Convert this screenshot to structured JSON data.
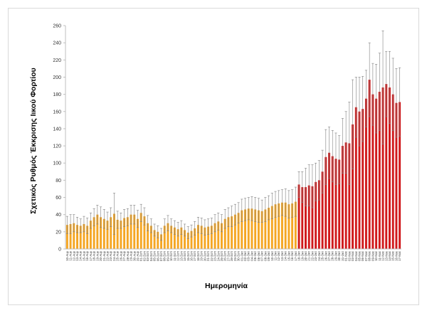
{
  "chart_data": {
    "type": "bar",
    "title": "",
    "xlabel": "Ημερομηνία",
    "ylabel": "Σχετικός Ρυθμός Έκκρισης Ιικού Φορτίου",
    "ylim": [
      0,
      260
    ],
    "yticks": [
      0,
      20,
      40,
      60,
      80,
      100,
      120,
      140,
      160,
      180,
      200,
      220,
      240,
      260
    ],
    "grid": false,
    "legend": "none",
    "colors": {
      "before": "#f5a623",
      "after": "#d0191b",
      "error_bar": "#7f7f7f",
      "axis": "#bfbfbf"
    },
    "categories": [
      "10-Αυγ",
      "11-Αυγ",
      "12-Αυγ",
      "13-Αυγ",
      "14-Αυγ",
      "15-Αυγ",
      "16-Αυγ",
      "17-Αυγ",
      "18-Αυγ",
      "19-Αυγ",
      "20-Αυγ",
      "21-Αυγ",
      "22-Αυγ",
      "23-Αυγ",
      "24-Αυγ",
      "25-Αυγ",
      "26-Αυγ",
      "27-Αυγ",
      "28-Αυγ",
      "29-Αυγ",
      "30-Αυγ",
      "31-Αυγ",
      "01-Σεπ",
      "02-Σεπ",
      "03-Σεπ",
      "04-Σεπ",
      "05-Σεπ",
      "06-Σεπ",
      "07-Σεπ",
      "08-Σεπ",
      "09-Σεπ",
      "10-Σεπ",
      "11-Σεπ",
      "12-Σεπ",
      "13-Σεπ",
      "14-Σεπ",
      "15-Σεπ",
      "16-Σεπ",
      "17-Σεπ",
      "18-Σεπ",
      "19-Σεπ",
      "20-Σεπ",
      "21-Σεπ",
      "22-Σεπ",
      "23-Σεπ",
      "24-Σεπ",
      "25-Σεπ",
      "26-Σεπ",
      "27-Σεπ",
      "28-Σεπ",
      "29-Σεπ",
      "30-Σεπ",
      "01-Οκτ",
      "02-Οκτ",
      "03-Οκτ",
      "04-Οκτ",
      "05-Οκτ",
      "06-Οκτ",
      "07-Οκτ",
      "08-Οκτ",
      "09-Οκτ",
      "10-Οκτ",
      "11-Οκτ",
      "12-Οκτ",
      "13-Οκτ",
      "14-Οκτ",
      "15-Οκτ",
      "16-Οκτ",
      "17-Οκτ",
      "18-Οκτ",
      "19-Οκτ",
      "20-Οκτ",
      "21-Οκτ",
      "22-Οκτ",
      "23-Οκτ",
      "24-Οκτ",
      "25-Οκτ",
      "26-Οκτ",
      "27-Οκτ",
      "28-Οκτ",
      "29-Οκτ",
      "30-Οκτ",
      "31-Οκτ",
      "01-Νοε",
      "02-Νοε",
      "03-Νοε",
      "04-Νοε",
      "05-Νοε",
      "06-Νοε",
      "07-Νοε",
      "08-Νοε",
      "09-Νοε",
      "10-Νοε",
      "11-Νοε",
      "12-Νοε",
      "13-Νοε",
      "14-Νοε",
      "15-Νοε",
      "16-Νοε",
      "17-Νοε"
    ],
    "series": [
      {
        "values": [
          28,
          29,
          30,
          28,
          27,
          29,
          27,
          33,
          37,
          40,
          37,
          35,
          33,
          37,
          41,
          34,
          33,
          36,
          37,
          40,
          40,
          35,
          42,
          38,
          30,
          27,
          22,
          20,
          17,
          27,
          30,
          27,
          25,
          23,
          25,
          22,
          19,
          21,
          24,
          28,
          27,
          25,
          26,
          27,
          30,
          32,
          30,
          35,
          37,
          38,
          40,
          42,
          45,
          46,
          47,
          47,
          46,
          45,
          44,
          46,
          48,
          50,
          52,
          53,
          54,
          54,
          52,
          53,
          55,
          75,
          72,
          72,
          74,
          73,
          78,
          80,
          90,
          107,
          112,
          108,
          105,
          104,
          120,
          124,
          123,
          145,
          165,
          160,
          163,
          175,
          197,
          180,
          175,
          183,
          188,
          192,
          188,
          180,
          170,
          171
        ],
        "errors": [
          10,
          11,
          10,
          9,
          8,
          9,
          9,
          9,
          10,
          11,
          12,
          11,
          10,
          11,
          24,
          10,
          9,
          10,
          10,
          11,
          11,
          10,
          10,
          10,
          9,
          8,
          7,
          7,
          7,
          8,
          9,
          8,
          8,
          8,
          8,
          7,
          7,
          7,
          8,
          9,
          9,
          9,
          9,
          9,
          10,
          10,
          10,
          11,
          11,
          12,
          12,
          12,
          13,
          13,
          13,
          14,
          14,
          14,
          13,
          14,
          14,
          15,
          15,
          15,
          15,
          16,
          16,
          16,
          17,
          15,
          18,
          22,
          24,
          25,
          22,
          23,
          25,
          32,
          30,
          30,
          30,
          28,
          32,
          36,
          48,
          52,
          35,
          40,
          38,
          33,
          43,
          36,
          40,
          45,
          66,
          38,
          42,
          42,
          40,
          40
        ]
      }
    ],
    "color_change_index": 69
  }
}
